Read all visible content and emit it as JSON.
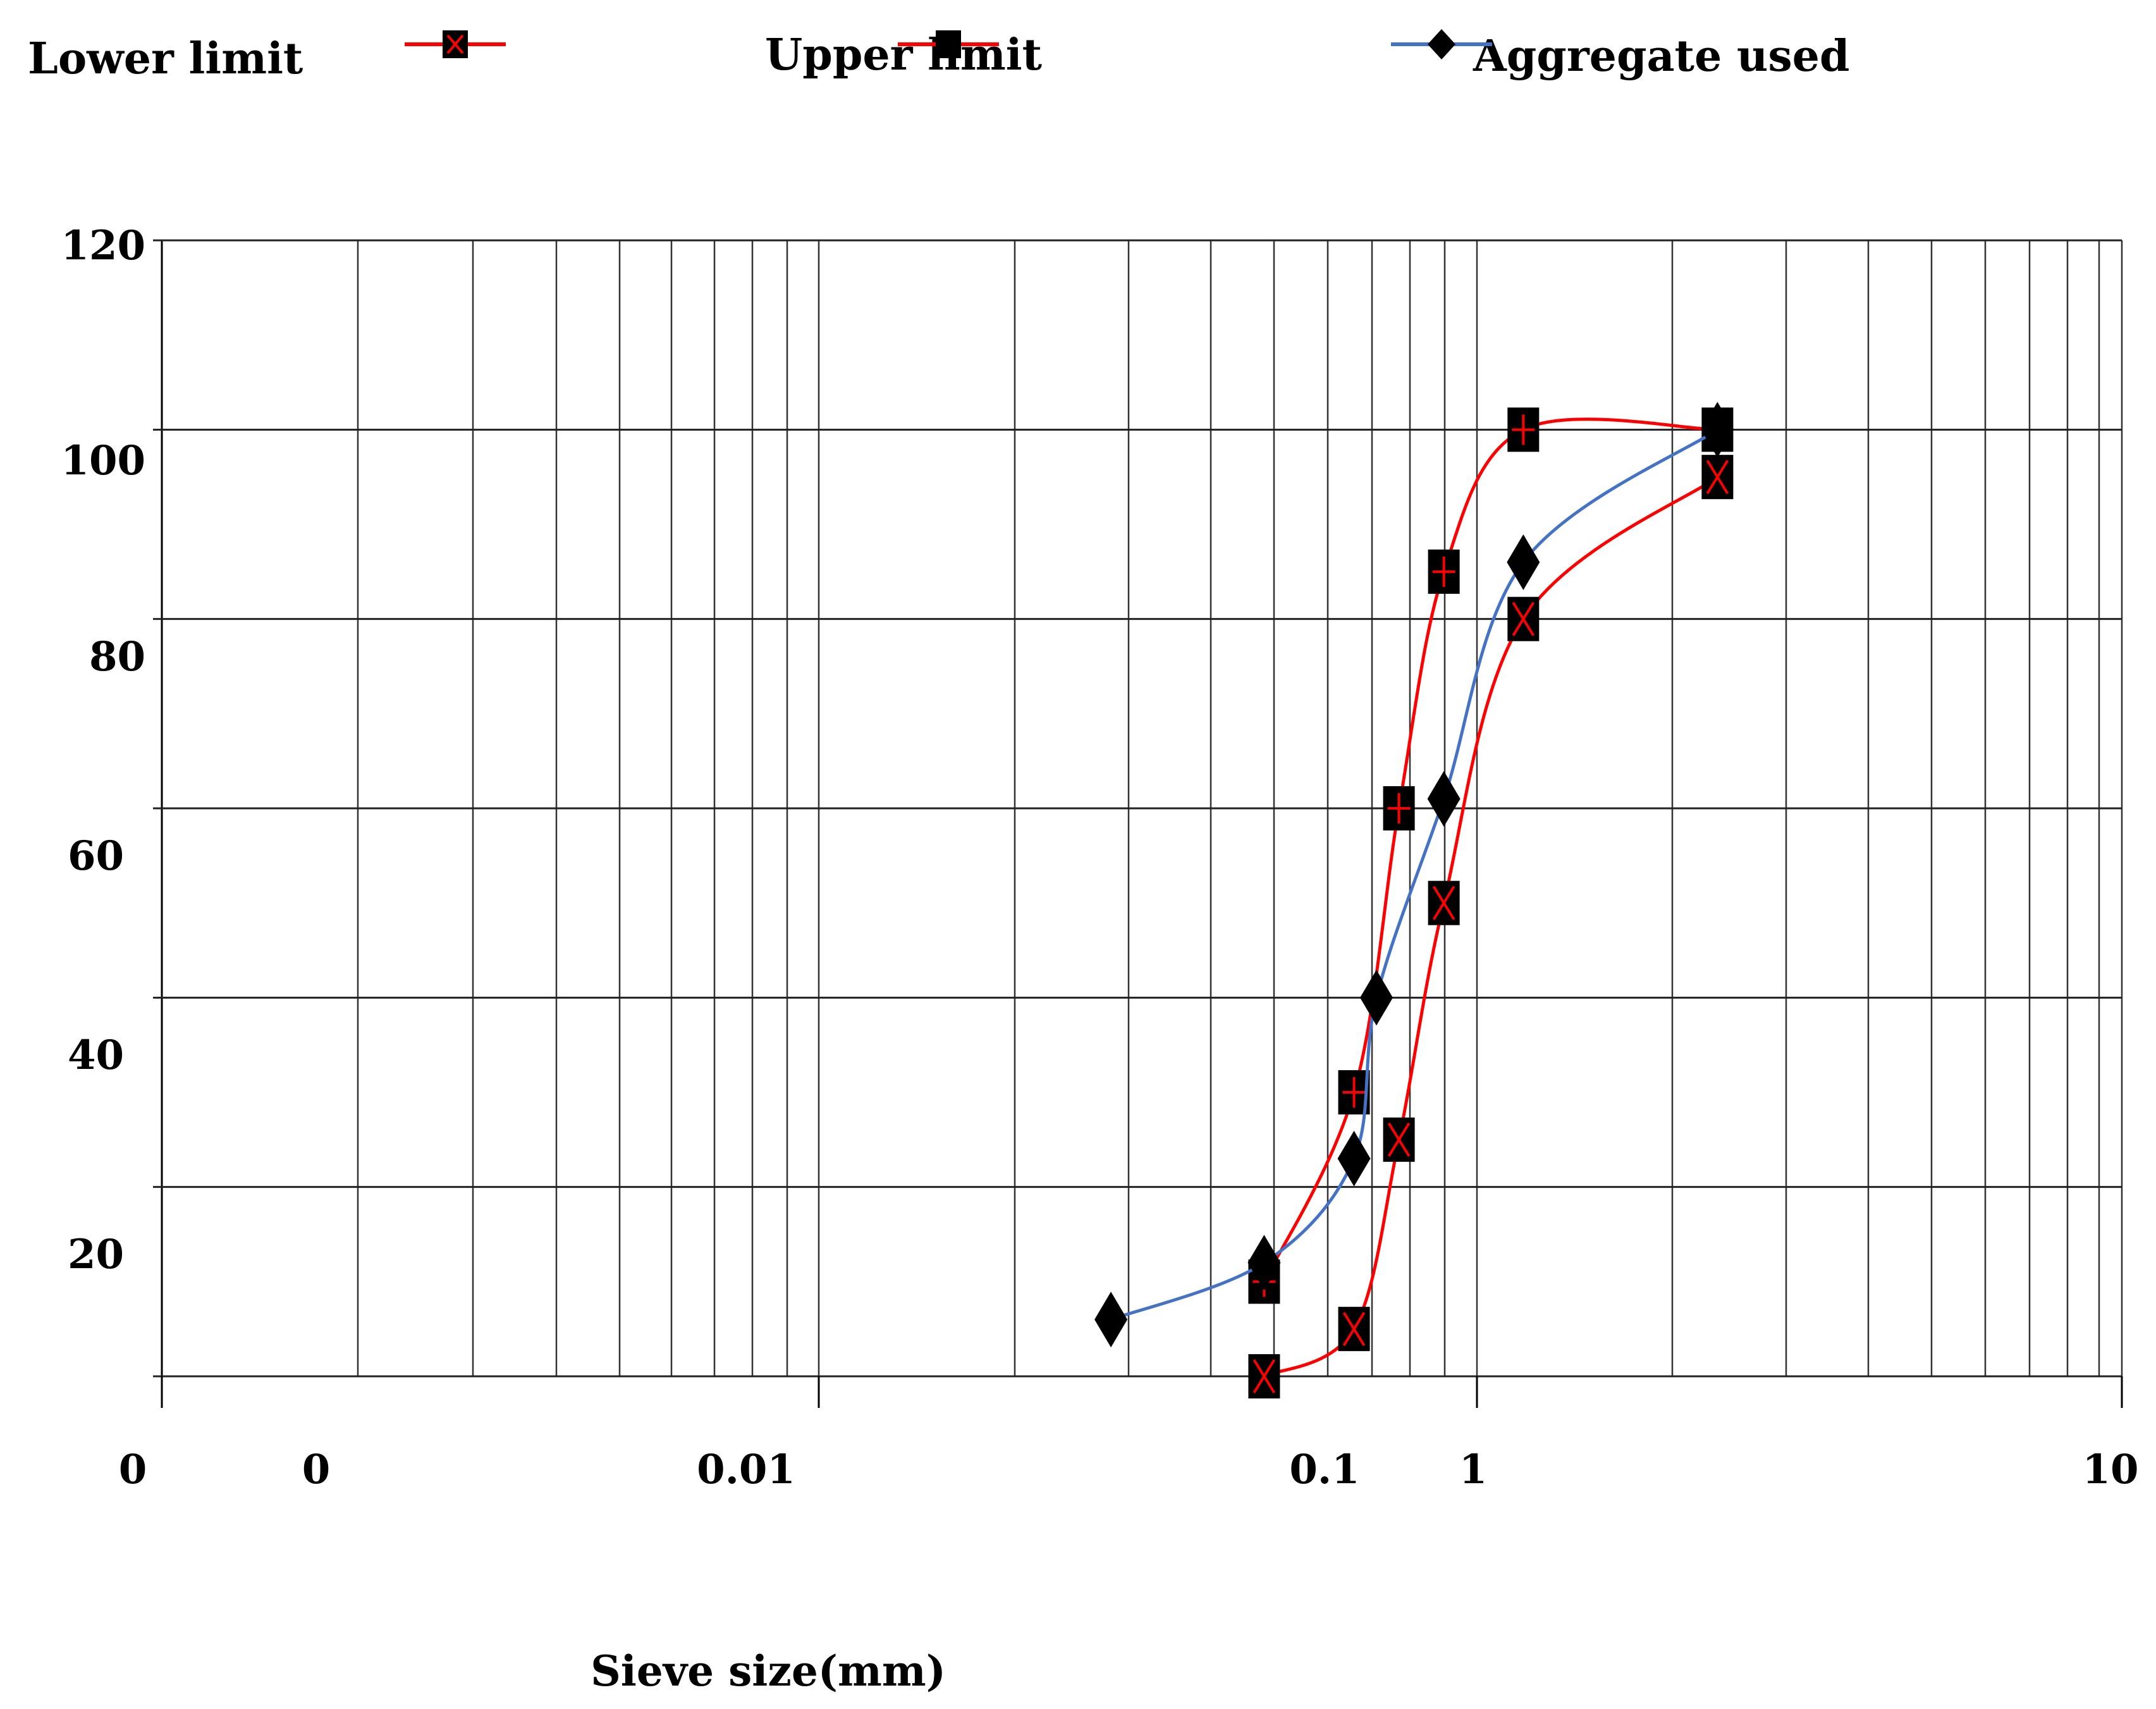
{
  "chart_data": {
    "type": "line",
    "title": "",
    "xlabel": "Sieve size(mm)",
    "ylabel": "",
    "xscale": "log",
    "ylim": [
      0,
      120
    ],
    "grid": true,
    "legend_position": "top",
    "y_tick_labels": [
      "120",
      "100",
      "80",
      "60",
      "40",
      "20"
    ],
    "x_tick_labels": [
      "0",
      "0",
      "0.01",
      "0.1",
      "1",
      "10"
    ],
    "series": [
      {
        "name": "Lower limit",
        "color": "#ff0000",
        "marker": "square-x",
        "x": [
          0.075,
          0.15,
          0.3,
          0.6,
          1.18,
          2.36
        ],
        "y": [
          0,
          5,
          25,
          50,
          80,
          95
        ]
      },
      {
        "name": "Upper limit",
        "color": "#ff0000",
        "marker": "square-plus",
        "x": [
          0.075,
          0.15,
          0.3,
          0.6,
          1.18,
          2.36
        ],
        "y": [
          10,
          30,
          60,
          85,
          100,
          100
        ]
      },
      {
        "name": "Aggregate used",
        "color": "#4472c4",
        "marker": "diamond",
        "x": [
          0.0375,
          0.075,
          0.15,
          0.212,
          0.6,
          1.18,
          2.36
        ],
        "y": [
          6,
          12,
          23,
          40,
          61,
          86,
          100
        ]
      }
    ]
  }
}
